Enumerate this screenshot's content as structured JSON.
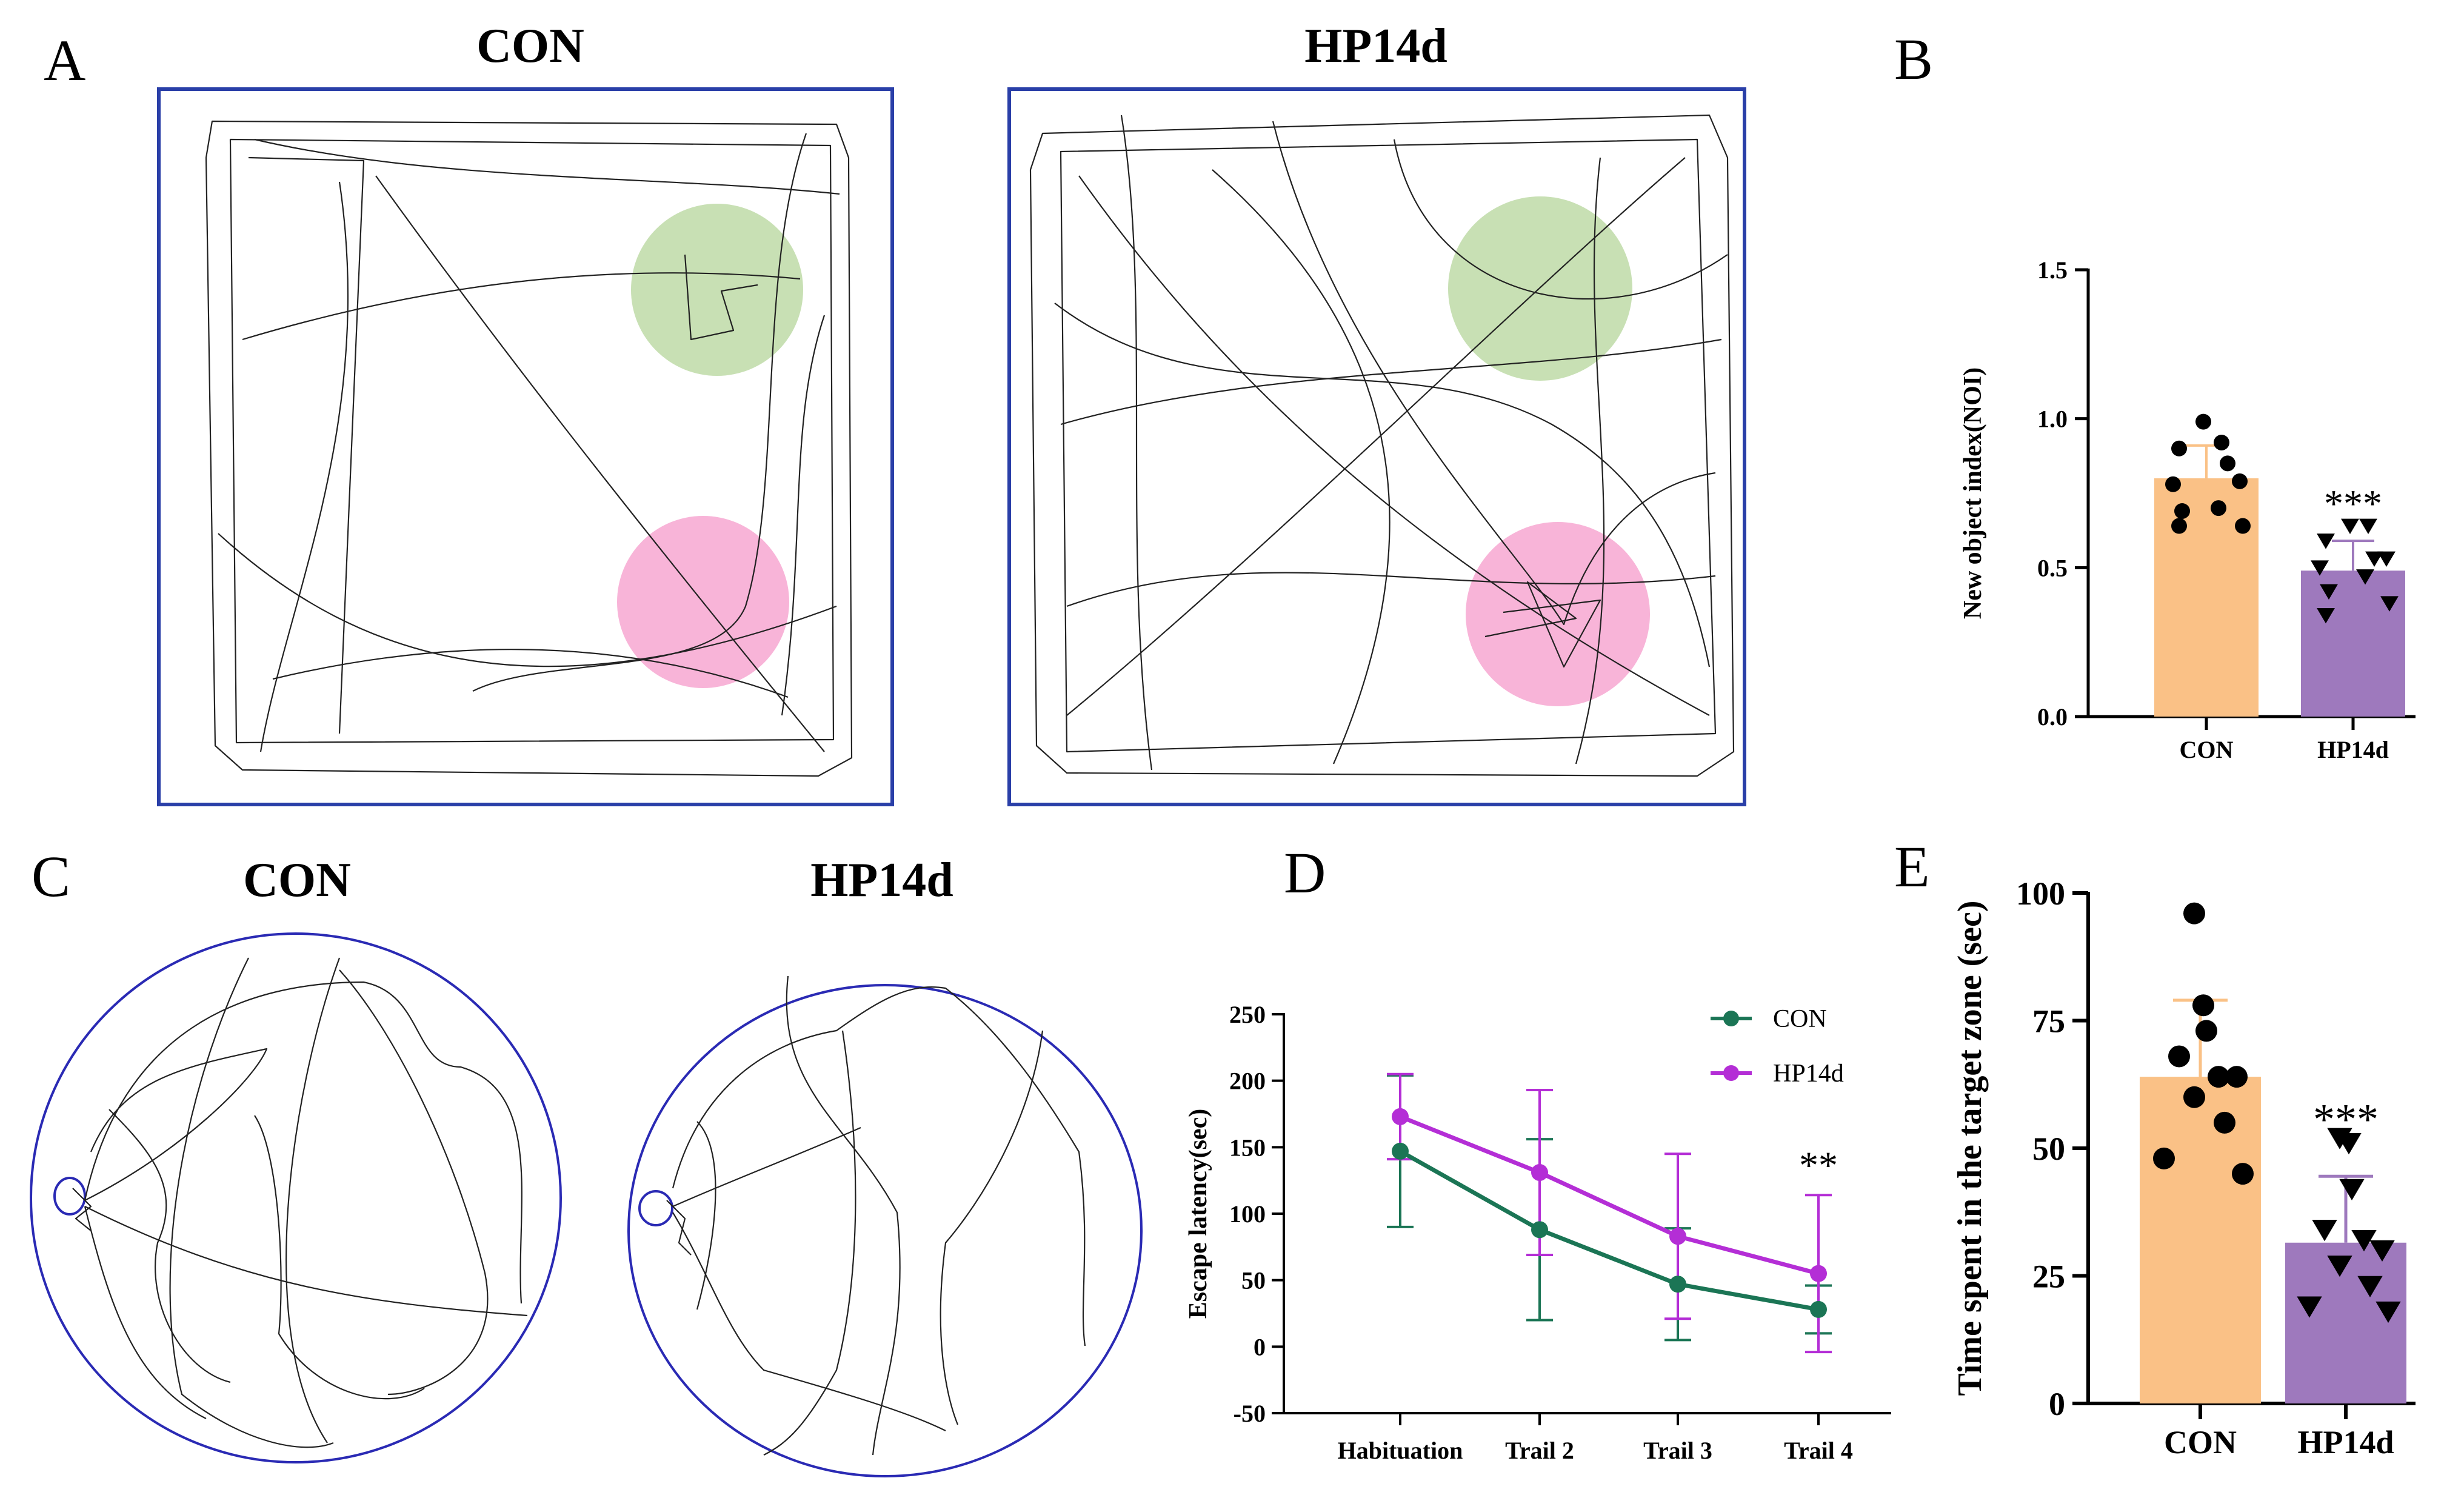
{
  "panel_labels": {
    "A": "A",
    "B": "B",
    "C": "C",
    "D": "D",
    "E": "E"
  },
  "panel_A": {
    "titles": [
      "CON",
      "HP14d"
    ],
    "zone_colors": {
      "new_object": "#c8e0b4",
      "old_object": "#f8b4d8"
    },
    "border_color": "#2a3fa8"
  },
  "panel_C": {
    "titles": [
      "CON",
      "HP14d"
    ],
    "border_color": "#2a2ab4"
  },
  "colors": {
    "con_bar": "#fac186",
    "hp_bar": "#9e79bd",
    "con_line": "#1b7555",
    "hp_line": "#b42ed6"
  },
  "chart_data": [
    {
      "id": "B",
      "type": "bar",
      "ylabel": "New object index(NOI)",
      "categories": [
        "CON",
        "HP14d"
      ],
      "values": [
        0.8,
        0.49
      ],
      "error": [
        0.11,
        0.1
      ],
      "ylim": [
        0,
        1.5
      ],
      "yticks": [
        0,
        0.5,
        1.0,
        1.5
      ],
      "ytick_labels": [
        "0.0",
        "0.5",
        "1.0",
        "1.5"
      ],
      "points": [
        [
          0.99,
          0.92,
          0.9,
          0.85,
          0.79,
          0.78,
          0.7,
          0.69,
          0.64,
          0.64
        ],
        [
          0.64,
          0.64,
          0.59,
          0.53,
          0.53,
          0.5,
          0.47,
          0.42,
          0.38,
          0.34
        ]
      ],
      "annotation": "***"
    },
    {
      "id": "D",
      "type": "line",
      "ylabel": "Escape latency(sec)",
      "categories": [
        "Habituation",
        "Trail 2",
        "Trail 3",
        "Trail 4"
      ],
      "series": [
        {
          "name": "CON",
          "values": [
            147,
            88,
            47,
            28
          ],
          "error": [
            57,
            68,
            42,
            18
          ]
        },
        {
          "name": "HP14d",
          "values": [
            173,
            131,
            83,
            55
          ],
          "error": [
            32,
            62,
            62,
            59
          ]
        }
      ],
      "ylim": [
        -50,
        250
      ],
      "yticks": [
        -50,
        0,
        50,
        100,
        150,
        200,
        250
      ],
      "legend": "top-right",
      "annotation": "**"
    },
    {
      "id": "E",
      "type": "bar",
      "ylabel": "Time spent in the target zone (sec)",
      "categories": [
        "CON",
        "HP14d"
      ],
      "values": [
        64,
        31.5
      ],
      "error": [
        15,
        13
      ],
      "ylim": [
        0,
        100
      ],
      "yticks": [
        0,
        25,
        50,
        75,
        100
      ],
      "points": [
        [
          96,
          78,
          73,
          68,
          64,
          64,
          60,
          55,
          48,
          45
        ],
        [
          52,
          51,
          42,
          34,
          32,
          30,
          27,
          23,
          19,
          18
        ]
      ],
      "annotation": "***"
    }
  ]
}
